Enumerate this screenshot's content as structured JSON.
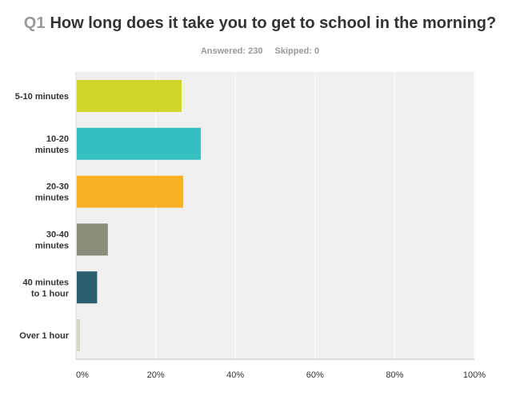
{
  "header": {
    "question_number": "Q1",
    "question_text": "How long does it take you to get to school in the morning?",
    "answered": "Answered: 230",
    "skipped": "Skipped: 0"
  },
  "chart_data": {
    "type": "bar",
    "orientation": "horizontal",
    "title": "Q1 How long does it take you to get to school in the morning?",
    "categories": [
      [
        "5-10 minutes"
      ],
      [
        "10-20",
        "minutes"
      ],
      [
        "20-30",
        "minutes"
      ],
      [
        "30-40",
        "minutes"
      ],
      [
        "40 minutes",
        "to 1 hour"
      ],
      [
        "Over 1 hour"
      ]
    ],
    "values": [
      26.5,
      31.3,
      26.9,
      8.0,
      5.3,
      1.0
    ],
    "colors": [
      "#d1d52a",
      "#34bfc1",
      "#f8b024",
      "#8b8c7b",
      "#2c5f6b",
      "#d6d6c7"
    ],
    "xlim": [
      0,
      100
    ],
    "xticks": [
      "0%",
      "20%",
      "40%",
      "60%",
      "80%",
      "100%"
    ],
    "grid": true,
    "plot_background": "#f0f0f0"
  }
}
